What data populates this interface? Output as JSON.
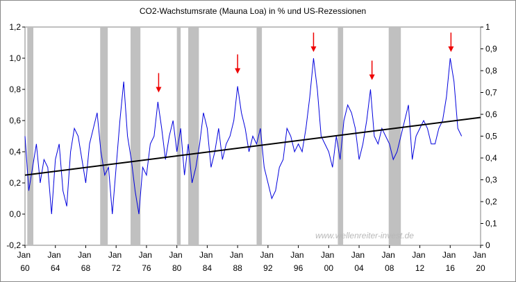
{
  "chart_data": {
    "type": "line",
    "title": "CO2-Wachstumsrate (Mauna Loa) in % und US-Rezessionen",
    "watermark": "www.wellenreiter-invest.de",
    "xlim": [
      1960,
      2020
    ],
    "xticks": [
      {
        "value": 1960,
        "label": "Jan 60"
      },
      {
        "value": 1964,
        "label": "Jan 64"
      },
      {
        "value": 1968,
        "label": "Jan 68"
      },
      {
        "value": 1972,
        "label": "Jan 72"
      },
      {
        "value": 1976,
        "label": "Jan 76"
      },
      {
        "value": 1980,
        "label": "Jan 80"
      },
      {
        "value": 1984,
        "label": "Jan 84"
      },
      {
        "value": 1988,
        "label": "Jan 88"
      },
      {
        "value": 1992,
        "label": "Jan 92"
      },
      {
        "value": 1996,
        "label": "Jan 96"
      },
      {
        "value": 2000,
        "label": "Jan 00"
      },
      {
        "value": 2004,
        "label": "Jan 04"
      },
      {
        "value": 2008,
        "label": "Jan 08"
      },
      {
        "value": 2012,
        "label": "Jan 12"
      },
      {
        "value": 2016,
        "label": "Jan 16"
      },
      {
        "value": 2020,
        "label": "Jan 20"
      }
    ],
    "ylim": [
      -0.2,
      1.2
    ],
    "yticks": [
      {
        "value": -0.2,
        "label": "-0,2"
      },
      {
        "value": 0,
        "label": "0,0"
      },
      {
        "value": 0.2,
        "label": "0,2"
      },
      {
        "value": 0.4,
        "label": "0,4"
      },
      {
        "value": 0.6,
        "label": "0,6"
      },
      {
        "value": 0.8,
        "label": "0,8"
      },
      {
        "value": 1,
        "label": "1,0"
      },
      {
        "value": 1.2,
        "label": "1,2"
      }
    ],
    "y2lim": [
      0,
      1
    ],
    "y2ticks": [
      0,
      {
        "value": 0.1,
        "label": "0,1"
      },
      {
        "value": 0.2,
        "label": "0,2"
      },
      {
        "value": 0.3,
        "label": "0,3"
      },
      {
        "value": 0.4,
        "label": "0,4"
      },
      {
        "value": 0.5,
        "label": "0,5"
      },
      {
        "value": 0.6,
        "label": "0,6"
      },
      {
        "value": 0.7,
        "label": "0,7"
      },
      {
        "value": 0.8,
        "label": "0,8"
      },
      {
        "value": 0.9,
        "label": "0,9"
      },
      1
    ],
    "recessions": {
      "color": "#c0c0c0",
      "ranges": [
        [
          1960.3,
          1961.1
        ],
        [
          1969.9,
          1970.9
        ],
        [
          1973.9,
          1975.2
        ],
        [
          1980.0,
          1980.5
        ],
        [
          1981.5,
          1982.9
        ],
        [
          1990.5,
          1991.2
        ],
        [
          2001.2,
          2001.9
        ],
        [
          2007.9,
          2009.5
        ]
      ]
    },
    "series": [
      {
        "color": "#0000dd",
        "x": [
          1960,
          1960.5,
          1961,
          1961.5,
          1962,
          1962.5,
          1963,
          1963.5,
          1964,
          1964.5,
          1965,
          1965.5,
          1966,
          1966.5,
          1967,
          1967.5,
          1968,
          1968.5,
          1969,
          1969.5,
          1970,
          1970.5,
          1971,
          1971.5,
          1972,
          1972.5,
          1973,
          1973.5,
          1974,
          1974.5,
          1975,
          1975.5,
          1976,
          1976.5,
          1977,
          1977.5,
          1978,
          1978.5,
          1979,
          1979.5,
          1980,
          1980.5,
          1981,
          1981.5,
          1982,
          1982.5,
          1983,
          1983.5,
          1984,
          1984.5,
          1985,
          1985.5,
          1986,
          1986.5,
          1987,
          1987.5,
          1988,
          1988.5,
          1989,
          1989.5,
          1990,
          1990.5,
          1991,
          1991.5,
          1992,
          1992.5,
          1993,
          1993.5,
          1994,
          1994.5,
          1995,
          1995.5,
          1996,
          1996.5,
          1997,
          1997.5,
          1998,
          1998.5,
          1999,
          1999.5,
          2000,
          2000.5,
          2001,
          2001.5,
          2002,
          2002.5,
          2003,
          2003.5,
          2004,
          2004.5,
          2005,
          2005.5,
          2006,
          2006.5,
          2007,
          2007.5,
          2008,
          2008.5,
          2009,
          2009.5,
          2010,
          2010.5,
          2011,
          2011.5,
          2012,
          2012.5,
          2013,
          2013.5,
          2014,
          2014.5,
          2015,
          2015.5,
          2016,
          2016.5,
          2017,
          2017.5
        ],
        "values": [
          0.5,
          0.15,
          0.3,
          0.45,
          0.2,
          0.35,
          0.3,
          0.0,
          0.35,
          0.45,
          0.15,
          0.05,
          0.4,
          0.55,
          0.5,
          0.35,
          0.2,
          0.45,
          0.55,
          0.65,
          0.4,
          0.25,
          0.3,
          0.0,
          0.3,
          0.6,
          0.85,
          0.5,
          0.35,
          0.15,
          0.0,
          0.3,
          0.25,
          0.45,
          0.5,
          0.72,
          0.55,
          0.35,
          0.5,
          0.6,
          0.4,
          0.55,
          0.25,
          0.45,
          0.2,
          0.3,
          0.45,
          0.65,
          0.55,
          0.3,
          0.4,
          0.55,
          0.35,
          0.45,
          0.5,
          0.6,
          0.82,
          0.65,
          0.55,
          0.4,
          0.5,
          0.45,
          0.55,
          0.3,
          0.2,
          0.1,
          0.15,
          0.3,
          0.35,
          0.55,
          0.5,
          0.4,
          0.45,
          0.4,
          0.55,
          0.75,
          1.0,
          0.8,
          0.5,
          0.45,
          0.4,
          0.3,
          0.5,
          0.35,
          0.6,
          0.7,
          0.65,
          0.55,
          0.35,
          0.45,
          0.6,
          0.8,
          0.5,
          0.45,
          0.55,
          0.5,
          0.45,
          0.35,
          0.4,
          0.5,
          0.6,
          0.7,
          0.35,
          0.5,
          0.55,
          0.6,
          0.55,
          0.45,
          0.45,
          0.55,
          0.6,
          0.75,
          1.0,
          0.85,
          0.55,
          0.5
        ]
      },
      {
        "color": "#000000",
        "x": [
          1960,
          2020
        ],
        "values": [
          0.25,
          0.62
        ]
      }
    ],
    "arrows": {
      "color": "#ee0000",
      "x": [
        1977.6,
        1988.0,
        1998.0,
        2005.7,
        2016.1
      ],
      "values": [
        0.78,
        0.9,
        1.04,
        0.86,
        1.04
      ]
    }
  }
}
